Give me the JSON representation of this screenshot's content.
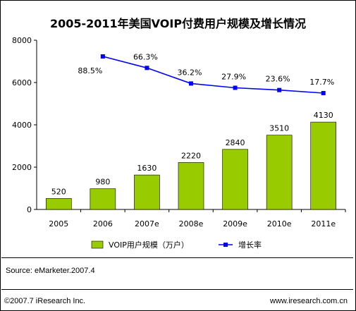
{
  "title": "2005-2011年美国VOIP付费用户规模及增长情况",
  "source": "Source:  eMarketer.2007.4",
  "copyright": "©2007.7 iResearch Inc.",
  "website": "www.iresearch.com.cn",
  "colors": {
    "bar": "#99CC00",
    "line": "#0000FF"
  },
  "chart_data": {
    "type": "bar+line",
    "categories": [
      "2005",
      "2006",
      "2007e",
      "2008e",
      "2009e",
      "2010e",
      "2011e"
    ],
    "series": [
      {
        "name": "VOIP用户规模（万户）",
        "type": "bar",
        "values": [
          520,
          980,
          1630,
          2220,
          2840,
          3510,
          4130
        ]
      },
      {
        "name": "增长率",
        "type": "line",
        "values": [
          null,
          88.5,
          66.3,
          36.2,
          27.9,
          23.6,
          17.7
        ],
        "labels": [
          "",
          "88.5%",
          "66.3%",
          "36.2%",
          "27.9%",
          "23.6%",
          "17.7%"
        ]
      }
    ],
    "yticks": [
      "0",
      "2000",
      "4000",
      "6000",
      "8000"
    ],
    "ylim": [
      0,
      8000
    ],
    "grid": false,
    "legend_position": "bottom"
  }
}
